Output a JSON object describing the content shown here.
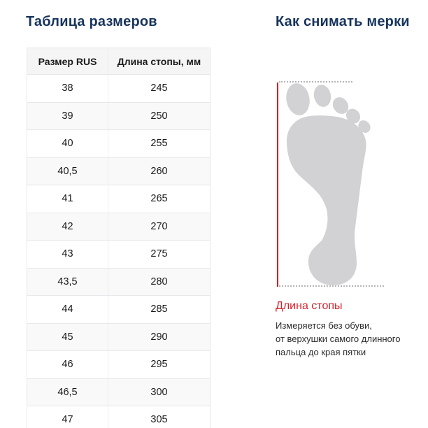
{
  "left": {
    "title": "Таблица размеров",
    "table": {
      "headers": [
        "Размер RUS",
        "Длина стопы, мм"
      ],
      "rows": [
        [
          "38",
          "245"
        ],
        [
          "39",
          "250"
        ],
        [
          "40",
          "255"
        ],
        [
          "40,5",
          "260"
        ],
        [
          "41",
          "265"
        ],
        [
          "42",
          "270"
        ],
        [
          "43",
          "275"
        ],
        [
          "43,5",
          "280"
        ],
        [
          "44",
          "285"
        ],
        [
          "45",
          "290"
        ],
        [
          "46",
          "295"
        ],
        [
          "46,5",
          "300"
        ],
        [
          "47",
          "305"
        ]
      ]
    }
  },
  "right": {
    "title": "Как снимать мерки",
    "illustration": "foot-outline-with-measurement-lines",
    "caption_title": "Длина стопы",
    "caption_lines": [
      "Измеряется без обуви,",
      "от верхушки самого длинного",
      "пальца до края пятки"
    ]
  },
  "colors": {
    "heading_navy": "#17345c",
    "accent_red": "#e2121f",
    "caption_red": "#d5232d",
    "foot_gray": "#d2d2d4",
    "table_border": "#e8e8ea",
    "row_alt_bg": "#f9f9fa",
    "header_bg": "#f5f5f6"
  }
}
